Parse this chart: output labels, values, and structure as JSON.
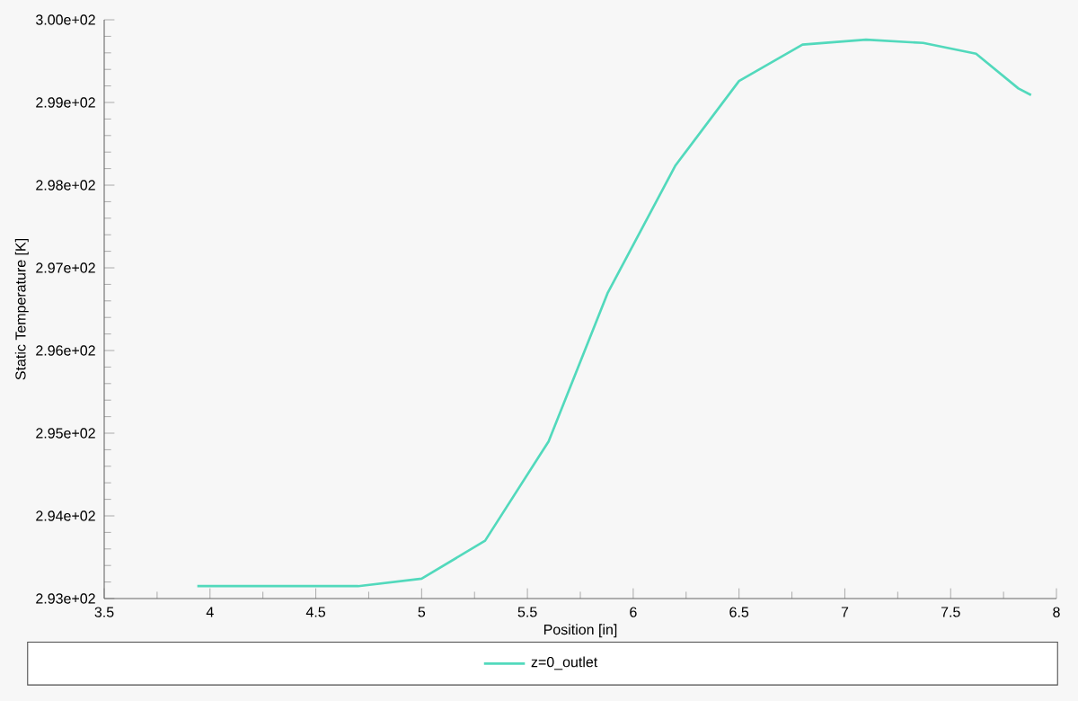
{
  "chart_data": {
    "type": "line",
    "xlabel": "Position [in]",
    "ylabel": "Static Temperature [K]",
    "xlim": [
      3.5,
      8
    ],
    "xticks": [
      3.5,
      4,
      4.5,
      5,
      5.5,
      6,
      6.5,
      7,
      7.5,
      8
    ],
    "ylim": [
      293,
      300
    ],
    "yticks": [
      {
        "value": 293,
        "label": "2.93e+02"
      },
      {
        "value": 294,
        "label": "2.94e+02"
      },
      {
        "value": 295,
        "label": "2.95e+02"
      },
      {
        "value": 296,
        "label": "2.96e+02"
      },
      {
        "value": 297,
        "label": "2.97e+02"
      },
      {
        "value": 298,
        "label": "2.98e+02"
      },
      {
        "value": 299,
        "label": "2.99e+02"
      },
      {
        "value": 300,
        "label": "3.00e+02"
      }
    ],
    "legend": "bottom",
    "series": [
      {
        "name": "z=0_outlet",
        "color": "#52d9bc",
        "x": [
          3.94,
          4.7,
          5.0,
          5.3,
          5.6,
          5.88,
          6.2,
          6.5,
          6.8,
          7.1,
          7.37,
          7.62,
          7.82,
          7.88
        ],
        "values": [
          293.15,
          293.15,
          293.24,
          293.7,
          294.9,
          296.7,
          298.24,
          299.26,
          299.7,
          299.76,
          299.72,
          299.59,
          299.17,
          299.09
        ]
      }
    ]
  }
}
